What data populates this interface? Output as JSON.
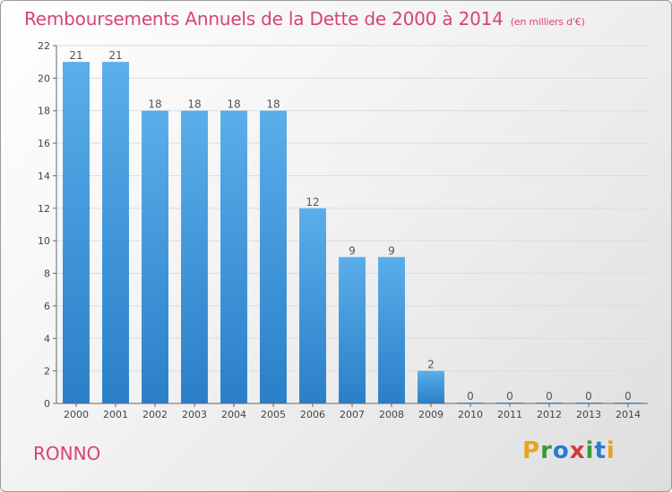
{
  "title": "Remboursements Annuels de la Dette de 2000 à 2014",
  "subtitle": "(en milliers d'€)",
  "commune": "RONNO",
  "brand": {
    "letters": [
      "P",
      "r",
      "o",
      "x",
      "i",
      "t",
      "i"
    ],
    "colors": [
      "#e8a319",
      "#3a9a3a",
      "#2b7bd1",
      "#d23a3a",
      "#3a9a3a",
      "#2b7bd1",
      "#e8a319"
    ]
  },
  "colors": {
    "bar_top": "#5aaeea",
    "bar_bottom": "#2a7fc8",
    "title": "#d6456f"
  },
  "chart_data": {
    "type": "bar",
    "categories": [
      "2000",
      "2001",
      "2002",
      "2003",
      "2004",
      "2005",
      "2006",
      "2007",
      "2008",
      "2009",
      "2010",
      "2011",
      "2012",
      "2013",
      "2014"
    ],
    "values": [
      21,
      21,
      18,
      18,
      18,
      18,
      12,
      9,
      9,
      2,
      0,
      0,
      0,
      0,
      0
    ],
    "ylim": [
      0,
      22
    ],
    "yticks": [
      0,
      2,
      4,
      6,
      8,
      10,
      12,
      14,
      16,
      18,
      20,
      22
    ],
    "grid": true,
    "data_labels": true
  }
}
